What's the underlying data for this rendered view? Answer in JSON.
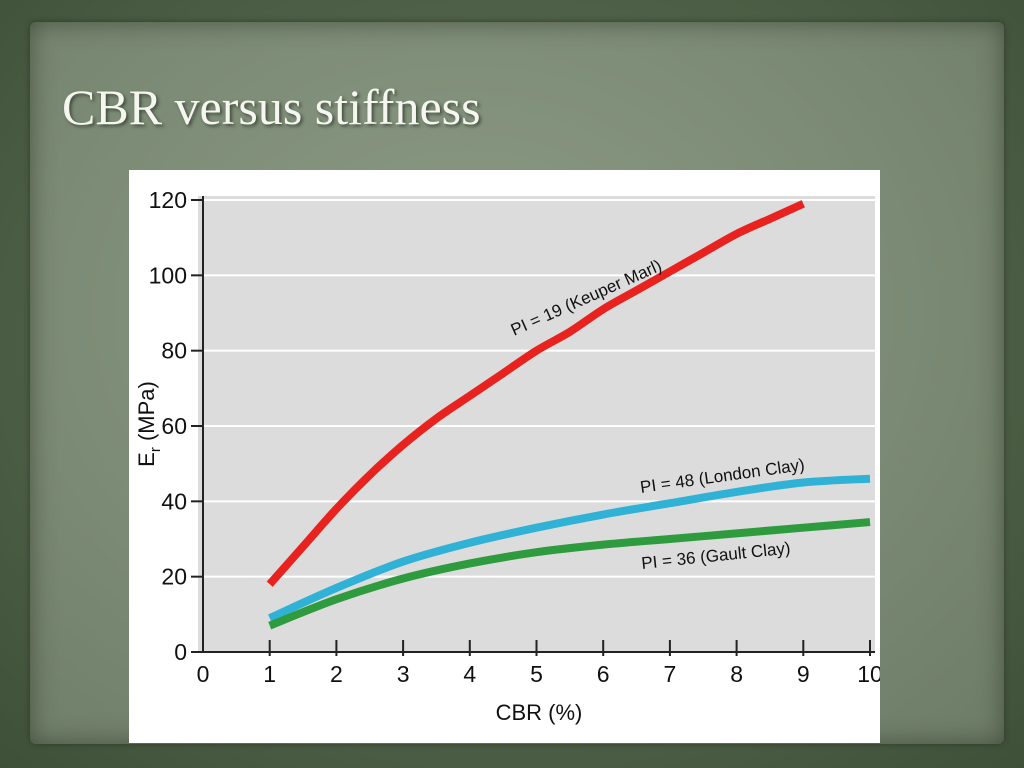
{
  "slide": {
    "title": "CBR versus stiffness"
  },
  "chart_data": {
    "type": "line",
    "xlabel": "CBR (%)",
    "ylabel": "Er (MPa)",
    "ylabel_main": "E",
    "ylabel_sub": "r",
    "ylabel_unit": " (MPa)",
    "xlim": [
      0,
      10
    ],
    "ylim": [
      0,
      120
    ],
    "x_ticks": [
      0,
      1,
      2,
      3,
      4,
      5,
      6,
      7,
      8,
      9,
      10
    ],
    "y_ticks": [
      0,
      20,
      40,
      60,
      80,
      100,
      120
    ],
    "grid": true,
    "legend": "none",
    "series": [
      {
        "name": "PI = 19 (Keuper Marl)",
        "color": "#e8231f",
        "x": [
          1,
          1.5,
          2,
          2.5,
          3,
          3.5,
          4,
          4.5,
          5,
          5.5,
          6,
          6.5,
          7,
          7.5,
          8,
          8.5,
          9
        ],
        "y": [
          18,
          28,
          38,
          47,
          55,
          62,
          68,
          74,
          80,
          85,
          91,
          96,
          101,
          106,
          111,
          115,
          119
        ]
      },
      {
        "name": "PI = 48 (London Clay)",
        "color": "#2fb2d6",
        "x": [
          1,
          2,
          3,
          4,
          5,
          6,
          7,
          8,
          9,
          10
        ],
        "y": [
          9,
          17,
          24,
          29,
          33,
          36.5,
          39.5,
          42.5,
          45,
          46
        ]
      },
      {
        "name": "PI = 36 (Gault Clay)",
        "color": "#2e9b3e",
        "x": [
          1,
          2,
          3,
          4,
          5,
          6,
          7,
          8,
          9,
          10
        ],
        "y": [
          7,
          14,
          19.5,
          23.5,
          26.5,
          28.5,
          30,
          31.5,
          33,
          34.5
        ]
      }
    ]
  }
}
